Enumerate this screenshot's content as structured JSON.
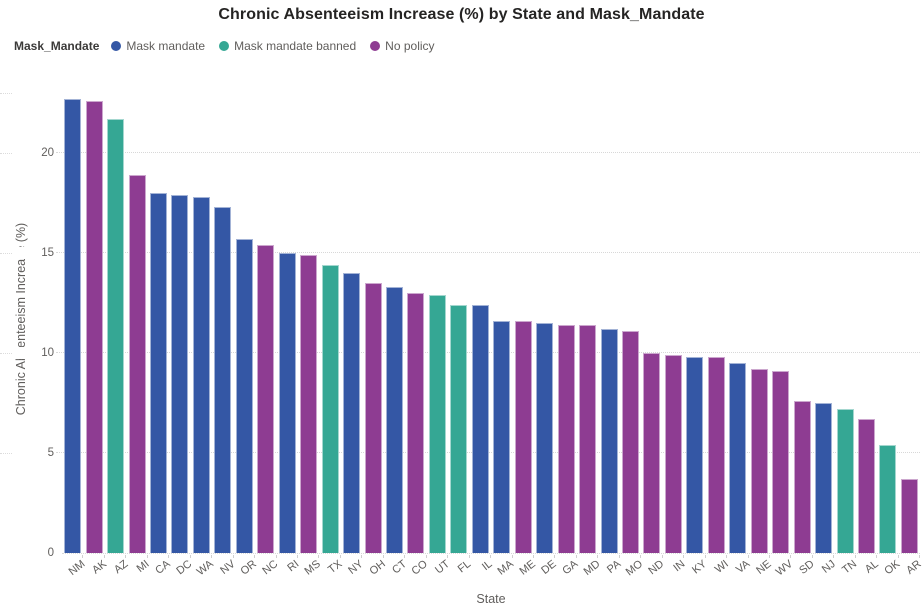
{
  "title": "Chronic Absenteeism Increase (%) by State and Mask_Mandate",
  "legend": {
    "title": "Mask_Mandate",
    "items": [
      {
        "label": "Mask mandate",
        "color": "#3457A5"
      },
      {
        "label": "Mask mandate banned",
        "color": "#35A794"
      },
      {
        "label": "No policy",
        "color": "#8E3C92"
      }
    ]
  },
  "y_axis": {
    "title": "Chronic Absenteeism Increase (%)",
    "ticks": [
      0,
      5,
      10,
      15,
      20
    ]
  },
  "x_axis": {
    "title": "State"
  },
  "chart_data": {
    "type": "bar",
    "title": "Chronic Absenteeism Increase (%) by State and Mask_Mandate",
    "xlabel": "State",
    "ylabel": "Chronic Absenteeism Increase (%)",
    "ylim": [
      0,
      23
    ],
    "yticks": [
      0,
      5,
      10,
      15,
      20
    ],
    "grid": "horizontal-dotted",
    "legend_position": "top-left",
    "series_field": "Mask_Mandate",
    "colors": {
      "Mask mandate": "#3457A5",
      "Mask mandate banned": "#35A794",
      "No policy": "#8E3C92"
    },
    "bars": [
      {
        "state": "NM",
        "value": 22.7,
        "group": "Mask mandate"
      },
      {
        "state": "AK",
        "value": 22.6,
        "group": "No policy"
      },
      {
        "state": "AZ",
        "value": 21.7,
        "group": "Mask mandate banned"
      },
      {
        "state": "MI",
        "value": 18.9,
        "group": "No policy"
      },
      {
        "state": "CA",
        "value": 18.0,
        "group": "Mask mandate"
      },
      {
        "state": "DC",
        "value": 17.9,
        "group": "Mask mandate"
      },
      {
        "state": "WA",
        "value": 17.8,
        "group": "Mask mandate"
      },
      {
        "state": "NV",
        "value": 17.3,
        "group": "Mask mandate"
      },
      {
        "state": "OR",
        "value": 15.7,
        "group": "Mask mandate"
      },
      {
        "state": "NC",
        "value": 15.4,
        "group": "No policy"
      },
      {
        "state": "RI",
        "value": 15.0,
        "group": "Mask mandate"
      },
      {
        "state": "MS",
        "value": 14.9,
        "group": "No policy"
      },
      {
        "state": "TX",
        "value": 14.4,
        "group": "Mask mandate banned"
      },
      {
        "state": "NY",
        "value": 14.0,
        "group": "Mask mandate"
      },
      {
        "state": "OH",
        "value": 13.5,
        "group": "No policy"
      },
      {
        "state": "CT",
        "value": 13.3,
        "group": "Mask mandate"
      },
      {
        "state": "CO",
        "value": 13.0,
        "group": "No policy"
      },
      {
        "state": "UT",
        "value": 12.9,
        "group": "Mask mandate banned"
      },
      {
        "state": "FL",
        "value": 12.4,
        "group": "Mask mandate banned"
      },
      {
        "state": "IL",
        "value": 12.4,
        "group": "Mask mandate"
      },
      {
        "state": "MA",
        "value": 11.6,
        "group": "Mask mandate"
      },
      {
        "state": "ME",
        "value": 11.6,
        "group": "No policy"
      },
      {
        "state": "DE",
        "value": 11.5,
        "group": "Mask mandate"
      },
      {
        "state": "GA",
        "value": 11.4,
        "group": "No policy"
      },
      {
        "state": "MD",
        "value": 11.4,
        "group": "No policy"
      },
      {
        "state": "PA",
        "value": 11.2,
        "group": "Mask mandate"
      },
      {
        "state": "MO",
        "value": 11.1,
        "group": "No policy"
      },
      {
        "state": "ND",
        "value": 10.0,
        "group": "No policy"
      },
      {
        "state": "IN",
        "value": 9.9,
        "group": "No policy"
      },
      {
        "state": "KY",
        "value": 9.8,
        "group": "Mask mandate"
      },
      {
        "state": "WI",
        "value": 9.8,
        "group": "No policy"
      },
      {
        "state": "VA",
        "value": 9.5,
        "group": "Mask mandate"
      },
      {
        "state": "NE",
        "value": 9.2,
        "group": "No policy"
      },
      {
        "state": "WV",
        "value": 9.1,
        "group": "No policy"
      },
      {
        "state": "SD",
        "value": 7.6,
        "group": "No policy"
      },
      {
        "state": "NJ",
        "value": 7.5,
        "group": "Mask mandate"
      },
      {
        "state": "TN",
        "value": 7.2,
        "group": "Mask mandate banned"
      },
      {
        "state": "AL",
        "value": 6.7,
        "group": "No policy"
      },
      {
        "state": "OK",
        "value": 5.4,
        "group": "Mask mandate banned"
      },
      {
        "state": "AR",
        "value": 3.7,
        "group": "No policy"
      }
    ]
  }
}
